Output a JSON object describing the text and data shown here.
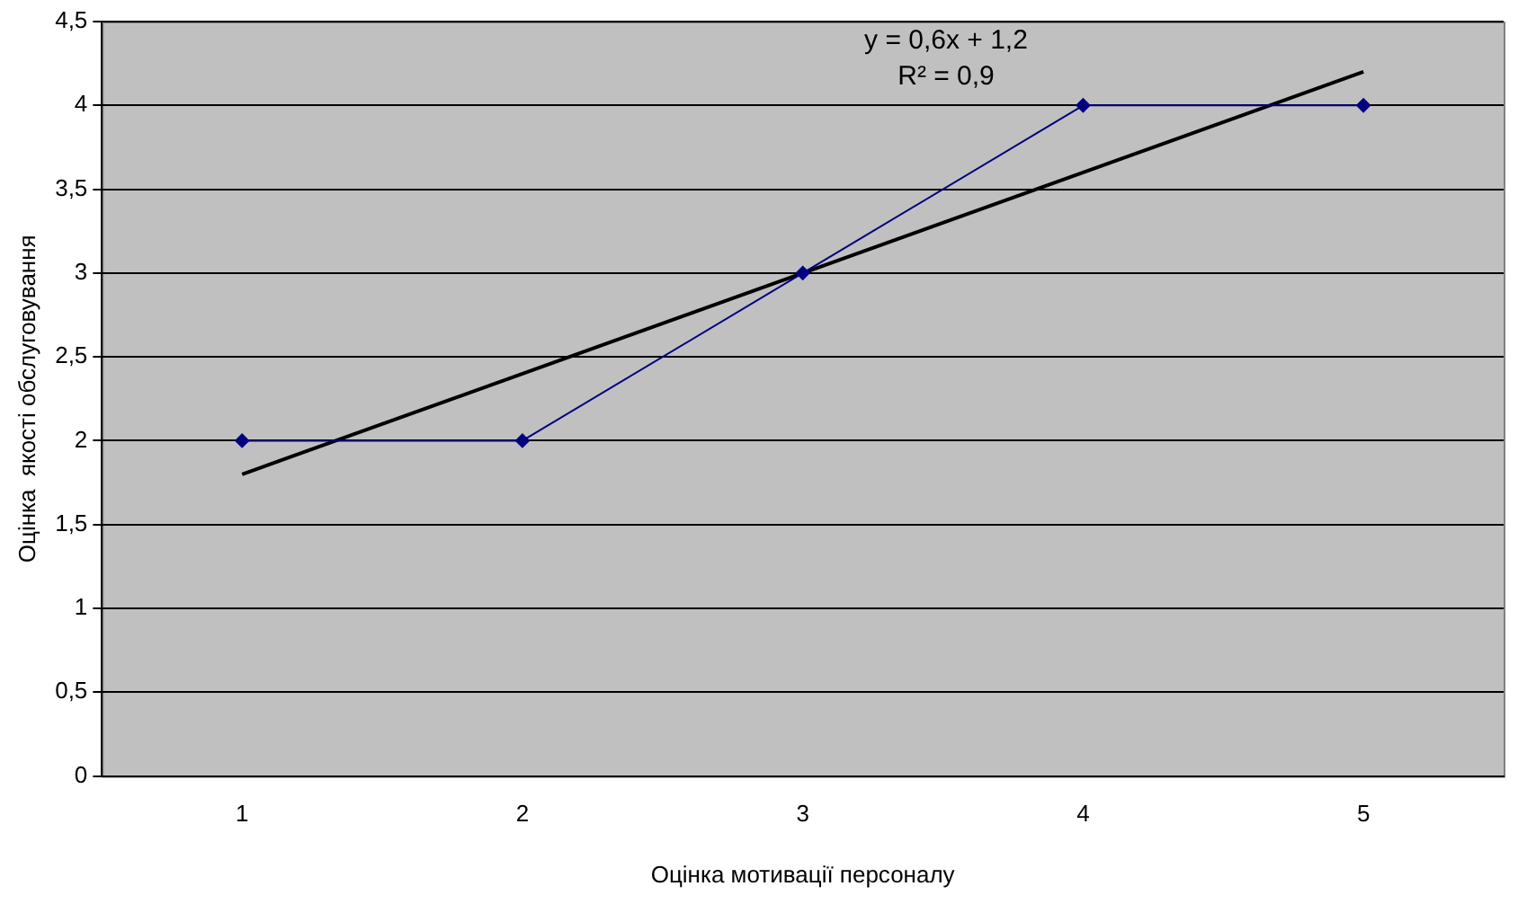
{
  "chart_data": {
    "type": "line",
    "xlabel": "Оцінка мотивації персоналу",
    "ylabel": "Оцінка  якості обслуговування",
    "categories": [
      "1",
      "2",
      "3",
      "4",
      "5"
    ],
    "series": [
      {
        "values": [
          2,
          2,
          3,
          4,
          4
        ],
        "color": "#000080",
        "marker": "diamond"
      },
      {
        "type": "line",
        "x": [
          "1",
          "5"
        ],
        "values": [
          1.8,
          4.2
        ],
        "color": "#000000",
        "marker": "none"
      }
    ],
    "ylim": [
      0,
      4.5
    ],
    "yticks": [
      0,
      {
        "value": 0.5,
        "label": "0,5"
      },
      1,
      {
        "value": 1.5,
        "label": "1,5"
      },
      2,
      {
        "value": 2.5,
        "label": "2,5"
      },
      3,
      {
        "value": 3.5,
        "label": "3,5"
      },
      4,
      {
        "value": 4.5,
        "label": "4,5"
      }
    ],
    "grid": "y",
    "legend": false,
    "annotations": [
      "y = 0,6x + 1,2",
      "R² = 0,9"
    ]
  }
}
